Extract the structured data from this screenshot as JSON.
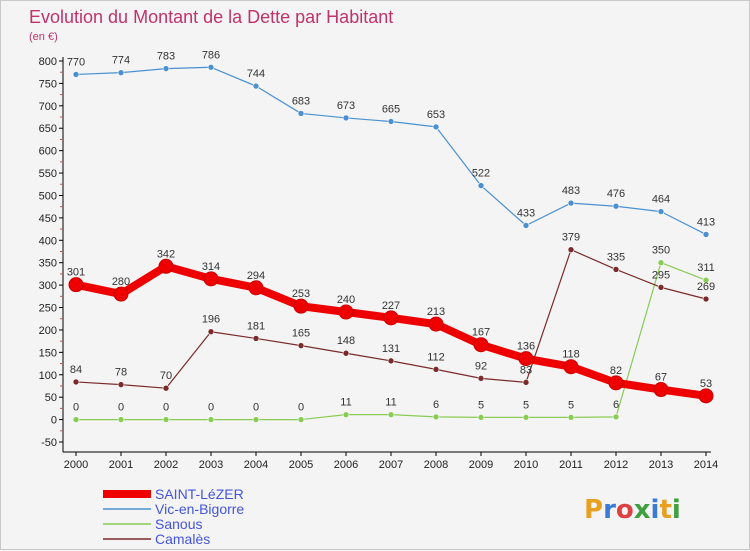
{
  "chart_data": {
    "type": "line",
    "title": "Evolution du Montant de la Dette par Habitant",
    "subtitle": "(en €)",
    "x": [
      "2000",
      "2001",
      "2002",
      "2003",
      "2004",
      "2005",
      "2006",
      "2007",
      "2008",
      "2009",
      "2010",
      "2011",
      "2012",
      "2013",
      "2014"
    ],
    "ylim": [
      -50,
      800
    ],
    "yticks": [
      -50,
      0,
      50,
      100,
      150,
      200,
      250,
      300,
      350,
      400,
      450,
      500,
      550,
      600,
      650,
      700,
      750,
      800
    ],
    "grid": false,
    "legend_position": "bottom-left",
    "series": [
      {
        "name": "SAINT-LéZER",
        "color": "#ee0000",
        "values": [
          301,
          280,
          342,
          314,
          294,
          253,
          240,
          227,
          213,
          167,
          136,
          118,
          82,
          67,
          53
        ]
      },
      {
        "name": "Vic-en-Bigorre",
        "color": "#4a90d0",
        "values": [
          770,
          774,
          783,
          786,
          744,
          683,
          673,
          665,
          653,
          522,
          433,
          483,
          476,
          464,
          413
        ]
      },
      {
        "name": "Sanous",
        "color": "#88cc55",
        "values": [
          0,
          0,
          0,
          0,
          0,
          0,
          11,
          11,
          6,
          5,
          5,
          5,
          6,
          350,
          311
        ]
      },
      {
        "name": "Camalès",
        "color": "#7a2a2a",
        "values": [
          84,
          78,
          70,
          196,
          181,
          165,
          148,
          131,
          112,
          92,
          83,
          379,
          335,
          295,
          269
        ]
      }
    ]
  },
  "logo": {
    "text": "Proxiti"
  }
}
